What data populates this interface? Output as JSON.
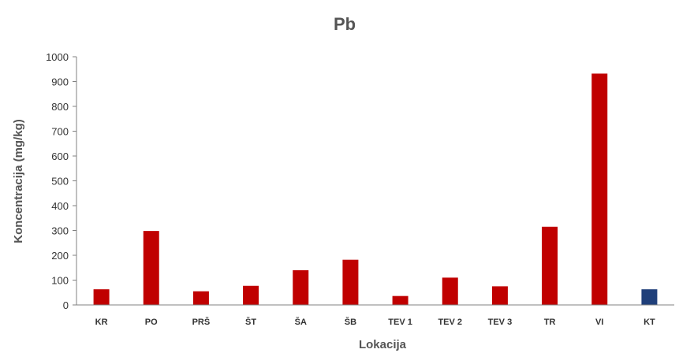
{
  "chart_data": {
    "type": "bar",
    "title": "Pb",
    "xlabel": "Lokacija",
    "ylabel": "Koncentracija (mg/kg)",
    "ylim": [
      0,
      1000
    ],
    "yticks": [
      0,
      100,
      200,
      300,
      400,
      500,
      600,
      700,
      800,
      900,
      1000
    ],
    "categories": [
      "KR",
      "PO",
      "PRŠ",
      "ŠT",
      "ŠA",
      "ŠB",
      "TEV 1",
      "TEV 2",
      "TEV 3",
      "TR",
      "VI",
      "KT"
    ],
    "values": [
      63,
      298,
      55,
      77,
      140,
      182,
      36,
      110,
      75,
      315,
      932,
      63
    ],
    "colors": [
      "#c00000",
      "#c00000",
      "#c00000",
      "#c00000",
      "#c00000",
      "#c00000",
      "#c00000",
      "#c00000",
      "#c00000",
      "#c00000",
      "#c00000",
      "#1f3f7a"
    ],
    "grid": false
  }
}
